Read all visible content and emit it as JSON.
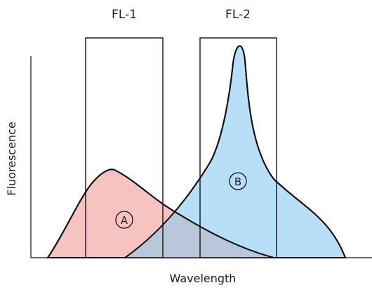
{
  "filters": {
    "fl1_label": "FL-1",
    "fl2_label": "FL-2"
  },
  "axes": {
    "x_label": "Wavelength",
    "y_label": "Fluorescence"
  },
  "curves": {
    "a_label": "A",
    "b_label": "B"
  },
  "colors": {
    "curve_a_fill": "#f7c3c0",
    "curve_b_fill": "#b9def8",
    "overlap_fill": "#b8c7d9",
    "line": "#111111"
  }
}
